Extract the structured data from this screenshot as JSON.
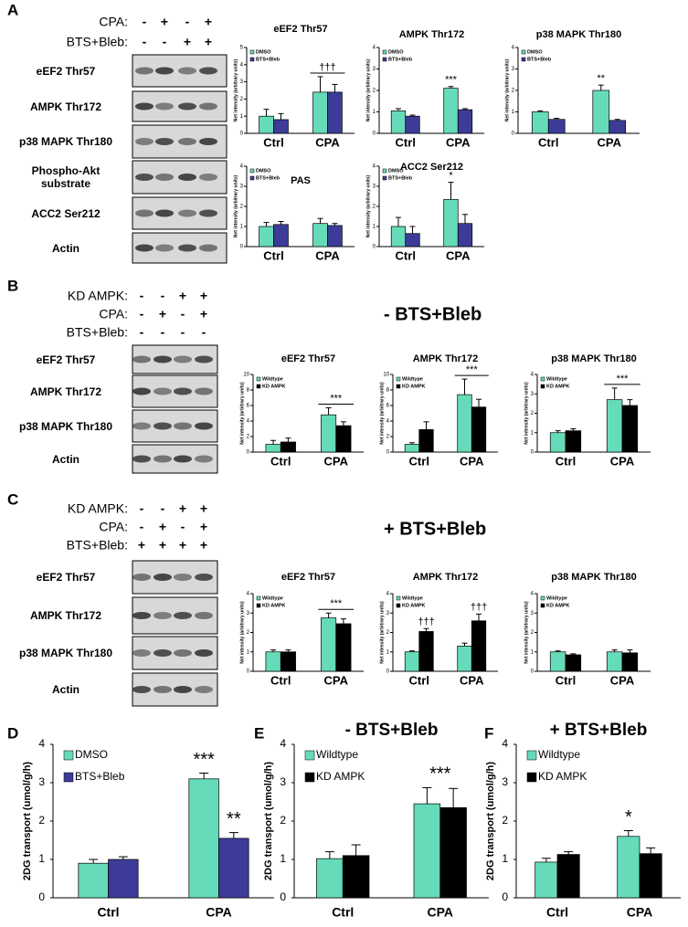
{
  "panel_labels": [
    "A",
    "B",
    "C",
    "D",
    "E",
    "F"
  ],
  "headings": {
    "B": "- BTS+Bleb",
    "C": "+ BTS+Bleb"
  },
  "blots": [
    {
      "conditions": [
        {
          "label": "CPA:",
          "signs": [
            "-",
            "+",
            "-",
            "+"
          ]
        },
        {
          "label": "BTS+Bleb:",
          "signs": [
            "-",
            "-",
            "+",
            "+"
          ]
        }
      ],
      "rows": [
        "eEF2 Thr57",
        "AMPK Thr172",
        "p38 MAPK Thr180",
        "Phospho-Akt substrate",
        "ACC2 Ser212",
        "Actin"
      ]
    },
    {
      "conditions": [
        {
          "label": "KD AMPK:",
          "signs": [
            "-",
            "-",
            "+",
            "+"
          ]
        },
        {
          "label": "CPA:",
          "signs": [
            "-",
            "+",
            "-",
            "+"
          ]
        },
        {
          "label": "BTS+Bleb:",
          "signs": [
            "-",
            "-",
            "-",
            "-"
          ]
        }
      ],
      "rows": [
        "eEF2 Thr57",
        "AMPK Thr172",
        "p38 MAPK Thr180",
        "Actin"
      ]
    },
    {
      "conditions": [
        {
          "label": "KD AMPK:",
          "signs": [
            "-",
            "-",
            "+",
            "+"
          ]
        },
        {
          "label": "CPA:",
          "signs": [
            "-",
            "+",
            "-",
            "+"
          ]
        },
        {
          "label": "BTS+Bleb:",
          "signs": [
            "+",
            "+",
            "+",
            "+"
          ]
        }
      ],
      "rows": [
        "eEF2 Thr57",
        "AMPK Thr172",
        "p38 MAPK Thr180",
        "Actin"
      ]
    }
  ],
  "chart_data": [
    {
      "type": "bar",
      "title": "eEF2 Thr57",
      "ylabel": "Net intensity (arbitrary units)",
      "categories": [
        "Ctrl",
        "CPA"
      ],
      "legend": "upper left",
      "series": [
        {
          "name": "DMSO",
          "color": "#66dbb9",
          "values": [
            1.0,
            2.4
          ],
          "errors": [
            0.4,
            0.9
          ]
        },
        {
          "name": "BTS+Bleb",
          "color": "#3c3c98",
          "values": [
            0.8,
            2.4
          ],
          "errors": [
            0.35,
            0.45
          ]
        }
      ],
      "ylim": [
        0,
        5
      ],
      "yticks": [
        0,
        1,
        2,
        3,
        4,
        5
      ],
      "annotations": [
        {
          "text": "†††",
          "category": "CPA",
          "bracket": true
        }
      ]
    },
    {
      "type": "bar",
      "title": "AMPK Thr172",
      "ylabel": "Net intensity (arbitrary units)",
      "categories": [
        "Ctrl",
        "CPA"
      ],
      "legend": "upper left",
      "series": [
        {
          "name": "DMSO",
          "color": "#66dbb9",
          "values": [
            1.05,
            2.1
          ],
          "errors": [
            0.1,
            0.08
          ]
        },
        {
          "name": "BTS+Bleb",
          "color": "#3c3c98",
          "values": [
            0.8,
            1.1
          ],
          "errors": [
            0.05,
            0.05
          ]
        }
      ],
      "ylim": [
        0,
        4
      ],
      "yticks": [
        0,
        1,
        2,
        3,
        4
      ],
      "annotations": [
        {
          "text": "***",
          "category": "CPA",
          "series": "DMSO"
        }
      ]
    },
    {
      "type": "bar",
      "title": "p38 MAPK Thr180",
      "ylabel": "Net intensity (arbitrary units)",
      "categories": [
        "Ctrl",
        "CPA"
      ],
      "legend": "upper left",
      "series": [
        {
          "name": "DMSO",
          "color": "#66dbb9",
          "values": [
            1.0,
            2.0
          ],
          "errors": [
            0.05,
            0.25
          ]
        },
        {
          "name": "BTS+Bleb",
          "color": "#3c3c98",
          "values": [
            0.65,
            0.6
          ],
          "errors": [
            0.05,
            0.05
          ]
        }
      ],
      "ylim": [
        0,
        4
      ],
      "yticks": [
        0,
        1,
        2,
        3,
        4
      ],
      "annotations": [
        {
          "text": "**",
          "category": "CPA",
          "series": "DMSO"
        }
      ]
    },
    {
      "type": "bar",
      "title": "PAS",
      "ylabel": "Net intensity (arbitrary units)",
      "categories": [
        "Ctrl",
        "CPA"
      ],
      "legend": "upper left",
      "series": [
        {
          "name": "DMSO",
          "color": "#66dbb9",
          "values": [
            1.0,
            1.15
          ],
          "errors": [
            0.2,
            0.25
          ]
        },
        {
          "name": "BTS+Bleb",
          "color": "#3c3c98",
          "values": [
            1.1,
            1.05
          ],
          "errors": [
            0.15,
            0.1
          ]
        }
      ],
      "ylim": [
        0,
        4
      ],
      "yticks": [
        0,
        1,
        2,
        3,
        4
      ]
    },
    {
      "type": "bar",
      "title": "ACC2 Ser212",
      "ylabel": "Net intensity (arbitrary units)",
      "categories": [
        "Ctrl",
        "CPA"
      ],
      "legend": "upper left",
      "series": [
        {
          "name": "DMSO",
          "color": "#66dbb9",
          "values": [
            1.0,
            2.35
          ],
          "errors": [
            0.45,
            0.85
          ]
        },
        {
          "name": "BTS+Bleb",
          "color": "#3c3c98",
          "values": [
            0.65,
            1.15
          ],
          "errors": [
            0.35,
            0.45
          ]
        }
      ],
      "ylim": [
        0,
        4
      ],
      "yticks": [
        0,
        1,
        2,
        3,
        4
      ],
      "annotations": [
        {
          "text": "*",
          "category": "CPA",
          "series": "DMSO"
        }
      ]
    },
    {
      "type": "bar",
      "title": "eEF2 Thr57",
      "ylabel": "Net intensity (arbitrary units)",
      "categories": [
        "Ctrl",
        "CPA"
      ],
      "legend": "upper left",
      "series": [
        {
          "name": "Wildtype",
          "color": "#66dbb9",
          "values": [
            1.0,
            4.8
          ],
          "errors": [
            0.5,
            0.9
          ]
        },
        {
          "name": "KD AMPK",
          "color": "#000000",
          "values": [
            1.3,
            3.4
          ],
          "errors": [
            0.5,
            0.5
          ]
        }
      ],
      "ylim": [
        0,
        10
      ],
      "yticks": [
        0,
        2,
        4,
        6,
        8,
        10
      ],
      "annotations": [
        {
          "text": "***",
          "category": "CPA",
          "bracket": true
        }
      ]
    },
    {
      "type": "bar",
      "title": "AMPK Thr172",
      "ylabel": "Net intensity (arbitrary units)",
      "categories": [
        "Ctrl",
        "CPA"
      ],
      "legend": "upper left",
      "series": [
        {
          "name": "Wildtype",
          "color": "#66dbb9",
          "values": [
            1.0,
            7.4
          ],
          "errors": [
            0.2,
            2.0
          ]
        },
        {
          "name": "KD AMPK",
          "color": "#000000",
          "values": [
            2.9,
            5.8
          ],
          "errors": [
            1.0,
            1.0
          ]
        }
      ],
      "ylim": [
        0,
        10
      ],
      "yticks": [
        0,
        2,
        4,
        6,
        8,
        10
      ],
      "annotations": [
        {
          "text": "***",
          "category": "CPA",
          "bracket": true
        }
      ]
    },
    {
      "type": "bar",
      "title": "p38 MAPK Thr180",
      "ylabel": "Net intensity (arbitrary units)",
      "categories": [
        "Ctrl",
        "CPA"
      ],
      "legend": "upper left",
      "series": [
        {
          "name": "Wildtype",
          "color": "#66dbb9",
          "values": [
            1.0,
            2.7
          ],
          "errors": [
            0.1,
            0.6
          ]
        },
        {
          "name": "KD AMPK",
          "color": "#000000",
          "values": [
            1.1,
            2.4
          ],
          "errors": [
            0.1,
            0.3
          ]
        }
      ],
      "ylim": [
        0,
        4
      ],
      "yticks": [
        0,
        1,
        2,
        3,
        4
      ],
      "annotations": [
        {
          "text": "***",
          "category": "CPA",
          "bracket": true
        }
      ]
    },
    {
      "type": "bar",
      "title": "eEF2 Thr57",
      "ylabel": "Net intensity (arbitrary units)",
      "categories": [
        "Ctrl",
        "CPA"
      ],
      "legend": "upper left",
      "series": [
        {
          "name": "Wildtype",
          "color": "#66dbb9",
          "values": [
            1.0,
            2.75
          ],
          "errors": [
            0.1,
            0.25
          ]
        },
        {
          "name": "KD AMPK",
          "color": "#000000",
          "values": [
            1.0,
            2.45
          ],
          "errors": [
            0.1,
            0.25
          ]
        }
      ],
      "ylim": [
        0,
        4
      ],
      "yticks": [
        0,
        1,
        2,
        3,
        4
      ],
      "annotations": [
        {
          "text": "***",
          "category": "CPA",
          "bracket": true
        }
      ]
    },
    {
      "type": "bar",
      "title": "AMPK Thr172",
      "ylabel": "Net intensity (arbitrary units)",
      "categories": [
        "Ctrl",
        "CPA"
      ],
      "legend": "upper left",
      "series": [
        {
          "name": "Wildtype",
          "color": "#66dbb9",
          "values": [
            1.0,
            1.3
          ],
          "errors": [
            0.05,
            0.15
          ]
        },
        {
          "name": "KD AMPK",
          "color": "#000000",
          "values": [
            2.05,
            2.6
          ],
          "errors": [
            0.15,
            0.35
          ]
        }
      ],
      "ylim": [
        0,
        4
      ],
      "yticks": [
        0,
        1,
        2,
        3,
        4
      ],
      "annotations": [
        {
          "text": "†††",
          "category": "Ctrl",
          "series": "KD AMPK"
        },
        {
          "text": "†††",
          "category": "CPA",
          "series": "KD AMPK"
        }
      ]
    },
    {
      "type": "bar",
      "title": "p38 MAPK Thr180",
      "ylabel": "Net intensity (arbitrary units)",
      "categories": [
        "Ctrl",
        "CPA"
      ],
      "legend": "upper left",
      "series": [
        {
          "name": "Wildtype",
          "color": "#66dbb9",
          "values": [
            1.0,
            1.0
          ],
          "errors": [
            0.05,
            0.1
          ]
        },
        {
          "name": "KD AMPK",
          "color": "#000000",
          "values": [
            0.85,
            0.95
          ],
          "errors": [
            0.05,
            0.15
          ]
        }
      ],
      "ylim": [
        0,
        4
      ],
      "yticks": [
        0,
        1,
        2,
        3,
        4
      ]
    },
    {
      "type": "bar",
      "ylabel": "2DG transport (umol/g/h)",
      "categories": [
        "Ctrl",
        "CPA"
      ],
      "legend": "upper left",
      "series": [
        {
          "name": "DMSO",
          "color": "#66dbb9",
          "values": [
            0.9,
            3.1
          ],
          "errors": [
            0.1,
            0.15
          ]
        },
        {
          "name": "BTS+Bleb",
          "color": "#3c3c98",
          "values": [
            1.0,
            1.55
          ],
          "errors": [
            0.07,
            0.15
          ]
        }
      ],
      "ylim": [
        0,
        4
      ],
      "yticks": [
        0,
        1,
        2,
        3,
        4
      ],
      "annotations": [
        {
          "text": "***",
          "category": "CPA",
          "series": "DMSO"
        },
        {
          "text": "**",
          "category": "CPA",
          "series": "BTS+Bleb"
        }
      ]
    },
    {
      "type": "bar",
      "title": "- BTS+Bleb",
      "ylabel": "2DG transport (umol/g/h)",
      "categories": [
        "Ctrl",
        "CPA"
      ],
      "legend": "upper left",
      "series": [
        {
          "name": "Wildtype",
          "color": "#66dbb9",
          "values": [
            1.02,
            2.45
          ],
          "errors": [
            0.18,
            0.42
          ]
        },
        {
          "name": "KD AMPK",
          "color": "#000000",
          "values": [
            1.1,
            2.35
          ],
          "errors": [
            0.28,
            0.5
          ]
        }
      ],
      "ylim": [
        0,
        4
      ],
      "yticks": [
        0,
        1,
        2,
        3,
        4
      ],
      "annotations": [
        {
          "text": "***",
          "category": "CPA"
        }
      ]
    },
    {
      "type": "bar",
      "title": "+ BTS+Bleb",
      "ylabel": "2DG transport (umol/g/h)",
      "categories": [
        "Ctrl",
        "CPA"
      ],
      "legend": "upper left",
      "series": [
        {
          "name": "Wildtype",
          "color": "#66dbb9",
          "values": [
            0.93,
            1.6
          ],
          "errors": [
            0.1,
            0.15
          ]
        },
        {
          "name": "KD AMPK",
          "color": "#000000",
          "values": [
            1.13,
            1.15
          ],
          "errors": [
            0.07,
            0.15
          ]
        }
      ],
      "ylim": [
        0,
        4
      ],
      "yticks": [
        0,
        1,
        2,
        3,
        4
      ],
      "annotations": [
        {
          "text": "*",
          "category": "CPA",
          "series": "Wildtype"
        }
      ]
    }
  ]
}
